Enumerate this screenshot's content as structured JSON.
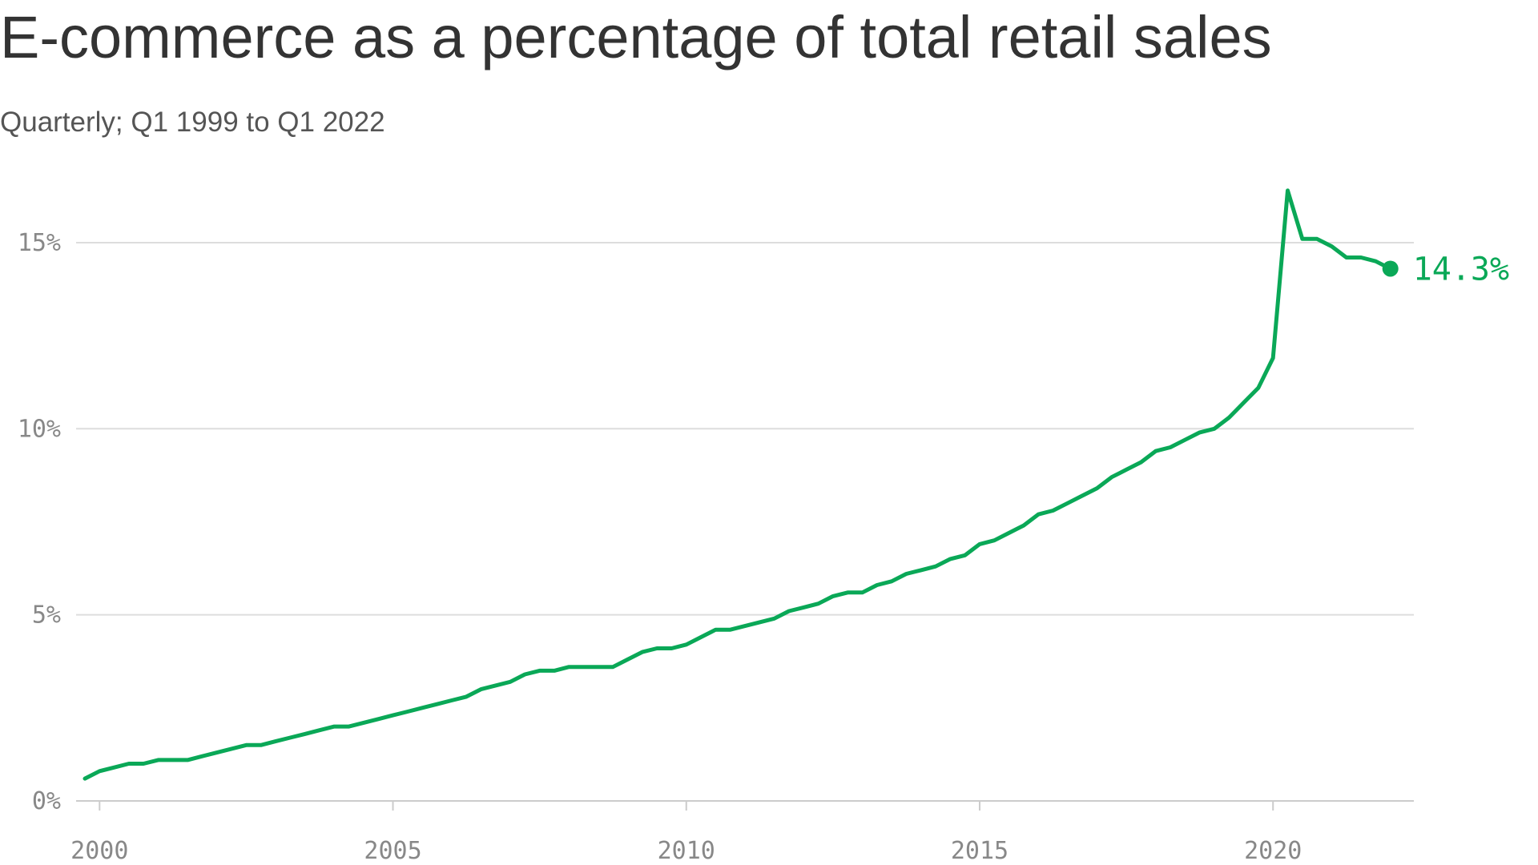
{
  "chart_data": {
    "type": "line",
    "title": "E-commerce as a percentage of total retail sales",
    "subtitle": "Quarterly; Q1 1999 to Q1 2022",
    "xlabel": "",
    "ylabel": "",
    "xlim": [
      1999.6,
      2022.4
    ],
    "ylim": [
      0,
      17
    ],
    "xticks": [
      2000,
      2005,
      2010,
      2015,
      2020
    ],
    "yticks": [
      {
        "value": 0,
        "label": "0%"
      },
      {
        "value": 5,
        "label": "5%"
      },
      {
        "value": 10,
        "label": "10%"
      },
      {
        "value": 15,
        "label": "15%"
      }
    ],
    "grid": true,
    "legend": "none",
    "line_color": "#0aa857",
    "grid_color": "#dddddd",
    "axis_color": "#cccccc",
    "series": [
      {
        "x": [
          1999.75,
          2000.0,
          2000.25,
          2000.5,
          2000.75,
          2001.0,
          2001.25,
          2001.5,
          2001.75,
          2002.0,
          2002.25,
          2002.5,
          2002.75,
          2003.0,
          2003.25,
          2003.5,
          2003.75,
          2004.0,
          2004.25,
          2004.5,
          2004.75,
          2005.0,
          2005.25,
          2005.5,
          2005.75,
          2006.0,
          2006.25,
          2006.5,
          2006.75,
          2007.0,
          2007.25,
          2007.5,
          2007.75,
          2008.0,
          2008.25,
          2008.5,
          2008.75,
          2009.0,
          2009.25,
          2009.5,
          2009.75,
          2010.0,
          2010.25,
          2010.5,
          2010.75,
          2011.0,
          2011.25,
          2011.5,
          2011.75,
          2012.0,
          2012.25,
          2012.5,
          2012.75,
          2013.0,
          2013.25,
          2013.5,
          2013.75,
          2014.0,
          2014.25,
          2014.5,
          2014.75,
          2015.0,
          2015.25,
          2015.5,
          2015.75,
          2016.0,
          2016.25,
          2016.5,
          2016.75,
          2017.0,
          2017.25,
          2017.5,
          2017.75,
          2018.0,
          2018.25,
          2018.5,
          2018.75,
          2019.0,
          2019.25,
          2019.5,
          2019.75,
          2020.0,
          2020.25,
          2020.5,
          2020.75,
          2021.0,
          2021.25,
          2021.5,
          2021.75,
          2022.0
        ],
        "values": [
          0.6,
          0.8,
          0.9,
          1.0,
          1.0,
          1.1,
          1.1,
          1.1,
          1.2,
          1.3,
          1.4,
          1.5,
          1.5,
          1.6,
          1.7,
          1.8,
          1.9,
          2.0,
          2.0,
          2.1,
          2.2,
          2.3,
          2.4,
          2.5,
          2.6,
          2.7,
          2.8,
          3.0,
          3.1,
          3.2,
          3.4,
          3.5,
          3.5,
          3.6,
          3.6,
          3.6,
          3.6,
          3.8,
          4.0,
          4.1,
          4.1,
          4.2,
          4.4,
          4.6,
          4.6,
          4.7,
          4.8,
          4.9,
          5.1,
          5.2,
          5.3,
          5.5,
          5.6,
          5.6,
          5.8,
          5.9,
          6.1,
          6.2,
          6.3,
          6.5,
          6.6,
          6.9,
          7.0,
          7.2,
          7.4,
          7.7,
          7.8,
          8.0,
          8.2,
          8.4,
          8.7,
          8.9,
          9.1,
          9.4,
          9.5,
          9.7,
          9.9,
          10.0,
          10.3,
          10.7,
          11.1,
          11.9,
          16.4,
          15.1,
          15.1,
          14.9,
          14.6,
          14.6,
          14.5,
          14.3
        ]
      }
    ],
    "end_label": "14.3%"
  }
}
